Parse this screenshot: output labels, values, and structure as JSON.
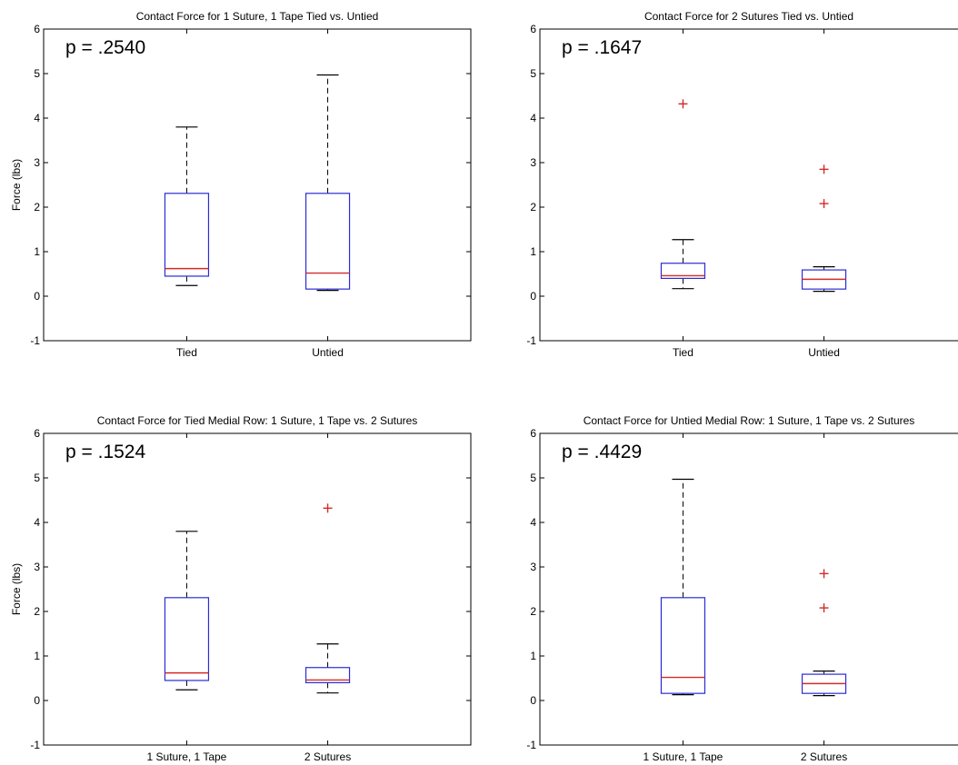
{
  "colors": {
    "box": "#2b2bd6",
    "median": "#d42a2a",
    "outlier": "#d42a2a",
    "whisker": "#000000",
    "frame": "#000000"
  },
  "chart_data": [
    {
      "type": "box",
      "title": "Contact Force for 1 Suture, 1 Tape Tied vs. Untied",
      "ylabel": "Force (lbs)",
      "ylim": [
        -1,
        6
      ],
      "yticks": [
        "-1",
        "0",
        "1",
        "2",
        "3",
        "4",
        "5",
        "6"
      ],
      "annotation": "p = .2540",
      "categories": [
        "Tied",
        "Untied"
      ],
      "boxes": [
        {
          "min": 0.24,
          "q1": 0.45,
          "median": 0.62,
          "q3": 2.31,
          "max": 3.8,
          "outliers": []
        },
        {
          "min": 0.13,
          "q1": 0.16,
          "median": 0.52,
          "q3": 2.31,
          "max": 4.97,
          "outliers": []
        }
      ]
    },
    {
      "type": "box",
      "title": "Contact Force for 2 Sutures Tied vs. Untied",
      "ylabel": "",
      "ylim": [
        -1,
        6
      ],
      "yticks": [
        "-1",
        "0",
        "1",
        "2",
        "3",
        "4",
        "5",
        "6"
      ],
      "annotation": "p = .1647",
      "categories": [
        "Tied",
        "Untied"
      ],
      "boxes": [
        {
          "min": 0.17,
          "q1": 0.4,
          "median": 0.46,
          "q3": 0.74,
          "max": 1.27,
          "outliers": [
            4.32
          ]
        },
        {
          "min": 0.11,
          "q1": 0.16,
          "median": 0.38,
          "q3": 0.59,
          "max": 0.66,
          "outliers": [
            2.85,
            2.08
          ]
        }
      ]
    },
    {
      "type": "box",
      "title": "Contact Force for Tied Medial Row: 1 Suture, 1 Tape vs. 2 Sutures",
      "ylabel": "Force (lbs)",
      "ylim": [
        -1,
        6
      ],
      "yticks": [
        "-1",
        "0",
        "1",
        "2",
        "3",
        "4",
        "5",
        "6"
      ],
      "annotation": "p = .1524",
      "categories": [
        "1 Suture, 1 Tape",
        "2 Sutures"
      ],
      "boxes": [
        {
          "min": 0.24,
          "q1": 0.45,
          "median": 0.62,
          "q3": 2.31,
          "max": 3.8,
          "outliers": []
        },
        {
          "min": 0.17,
          "q1": 0.4,
          "median": 0.46,
          "q3": 0.74,
          "max": 1.27,
          "outliers": [
            4.32
          ]
        }
      ]
    },
    {
      "type": "box",
      "title": "Contact Force for Untied Medial Row: 1 Suture, 1 Tape vs. 2 Sutures",
      "ylabel": "",
      "ylim": [
        -1,
        6
      ],
      "yticks": [
        "-1",
        "0",
        "1",
        "2",
        "3",
        "4",
        "5",
        "6"
      ],
      "annotation": "p = .4429",
      "categories": [
        "1 Suture, 1 Tape",
        "2 Sutures"
      ],
      "boxes": [
        {
          "min": 0.13,
          "q1": 0.16,
          "median": 0.52,
          "q3": 2.31,
          "max": 4.97,
          "outliers": []
        },
        {
          "min": 0.11,
          "q1": 0.16,
          "median": 0.38,
          "q3": 0.59,
          "max": 0.66,
          "outliers": [
            2.85,
            2.08
          ]
        }
      ]
    }
  ]
}
